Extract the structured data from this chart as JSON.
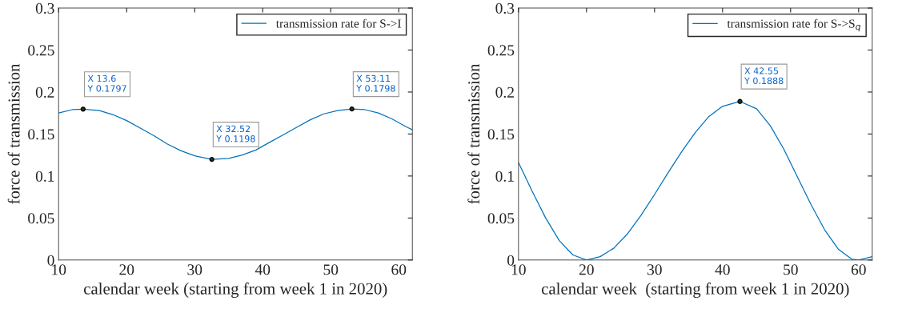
{
  "chart_data": [
    {
      "type": "line",
      "xlabel": "calendar week (starting from week 1 in 2020)",
      "ylabel": "force of transmission",
      "xlim": [
        10,
        62
      ],
      "xticks": [
        10,
        20,
        30,
        40,
        50,
        60
      ],
      "ylim": [
        0,
        0.3
      ],
      "yticks": [
        0,
        0.05,
        0.1,
        0.15,
        0.2,
        0.25,
        0.3
      ],
      "grid": false,
      "legend": "top right",
      "marker": "none",
      "line_style": "solid",
      "series": [
        {
          "name": "transmission rate for S->I",
          "color": "#0072bd",
          "x": [
            10,
            12,
            13.6,
            16,
            18,
            20,
            22,
            24,
            26,
            28,
            30,
            32.52,
            35,
            37,
            39,
            41,
            43,
            45,
            47,
            49,
            51,
            53.11,
            55,
            57,
            59,
            61,
            62
          ],
          "values": [
            0.175,
            0.179,
            0.1797,
            0.178,
            0.173,
            0.166,
            0.157,
            0.148,
            0.138,
            0.13,
            0.124,
            0.1198,
            0.121,
            0.125,
            0.131,
            0.14,
            0.149,
            0.158,
            0.167,
            0.174,
            0.178,
            0.1798,
            0.179,
            0.175,
            0.168,
            0.159,
            0.155
          ]
        }
      ],
      "annotations": [
        {
          "text": "X 13.6\nY 0.1797",
          "x": 13.6,
          "y": 0.1797
        },
        {
          "text": "X 32.52\nY 0.1198",
          "x": 32.52,
          "y": 0.1198
        },
        {
          "text": "X 53.11\nY 0.1798",
          "x": 53.11,
          "y": 0.1798
        }
      ]
    },
    {
      "type": "line",
      "xlabel": "calendar week  (starting from week 1 in 2020)",
      "ylabel": "force of transmission",
      "xlim": [
        10,
        62
      ],
      "xticks": [
        10,
        20,
        30,
        40,
        50,
        60
      ],
      "ylim": [
        0,
        0.3
      ],
      "yticks": [
        0,
        0.05,
        0.1,
        0.15,
        0.2,
        0.25,
        0.3
      ],
      "grid": false,
      "legend": "top right",
      "marker": "none",
      "line_style": "solid",
      "series": [
        {
          "name": "transmission rate for S->S$_{q}$",
          "color": "#0072bd",
          "x": [
            10,
            12,
            14,
            16,
            18,
            20,
            22,
            24,
            26,
            28,
            30,
            32,
            34,
            36,
            38,
            40,
            42.55,
            45,
            47,
            49,
            51,
            53,
            55,
            57,
            59,
            60,
            62
          ],
          "values": [
            0.116,
            0.082,
            0.05,
            0.023,
            0.006,
            0,
            0.004,
            0.014,
            0.031,
            0.053,
            0.078,
            0.104,
            0.129,
            0.152,
            0.171,
            0.183,
            0.1888,
            0.18,
            0.16,
            0.132,
            0.099,
            0.066,
            0.036,
            0.013,
            0.001,
            0,
            0.004
          ]
        }
      ],
      "annotations": [
        {
          "text": "X 42.55\nY 0.1888",
          "x": 42.55,
          "y": 0.1888
        }
      ]
    }
  ]
}
